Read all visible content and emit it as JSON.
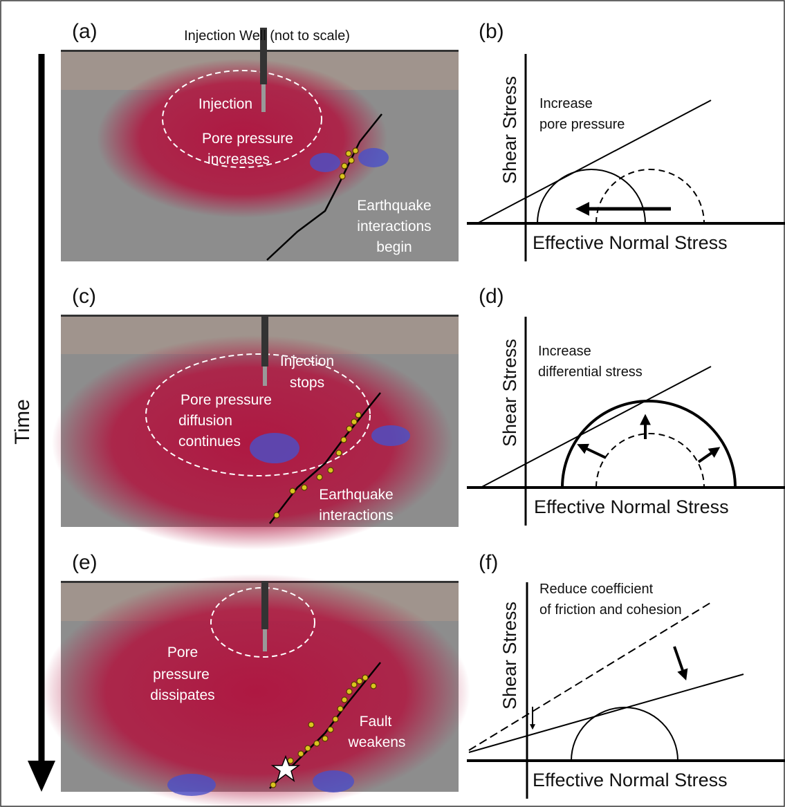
{
  "time_label": "Time",
  "well_label": "Injection Well (not to scale)",
  "cross_sections": [
    {
      "label": "(a)",
      "notes": [
        [
          "Injection"
        ],
        [
          "Pore pressure",
          "increases"
        ],
        [
          "Earthquake",
          "interactions",
          "begin"
        ]
      ]
    },
    {
      "label": "(c)",
      "notes": [
        [
          "Injection",
          "stops"
        ],
        [
          "Pore pressure",
          "diffusion",
          "continues"
        ],
        [
          "Earthquake",
          "interactions"
        ]
      ]
    },
    {
      "label": "(e)",
      "notes": [
        [
          "Pore",
          "pressure",
          "dissipates"
        ],
        [
          "Fault",
          "weakens"
        ]
      ]
    }
  ],
  "stress_plots": [
    {
      "label": "(b)",
      "y_axis": "Shear Stress",
      "x_axis": "Effective Normal Stress",
      "note": [
        "Increase",
        "pore pressure"
      ]
    },
    {
      "label": "(d)",
      "y_axis": "Shear Stress",
      "x_axis": "Effective Normal Stress",
      "note": [
        "Increase",
        "differential stress"
      ]
    },
    {
      "label": "(f)",
      "y_axis": "Shear Stress",
      "x_axis": "Effective Normal Stress",
      "note": [
        "Reduce coefficient",
        "of friction and cohesion"
      ]
    }
  ]
}
